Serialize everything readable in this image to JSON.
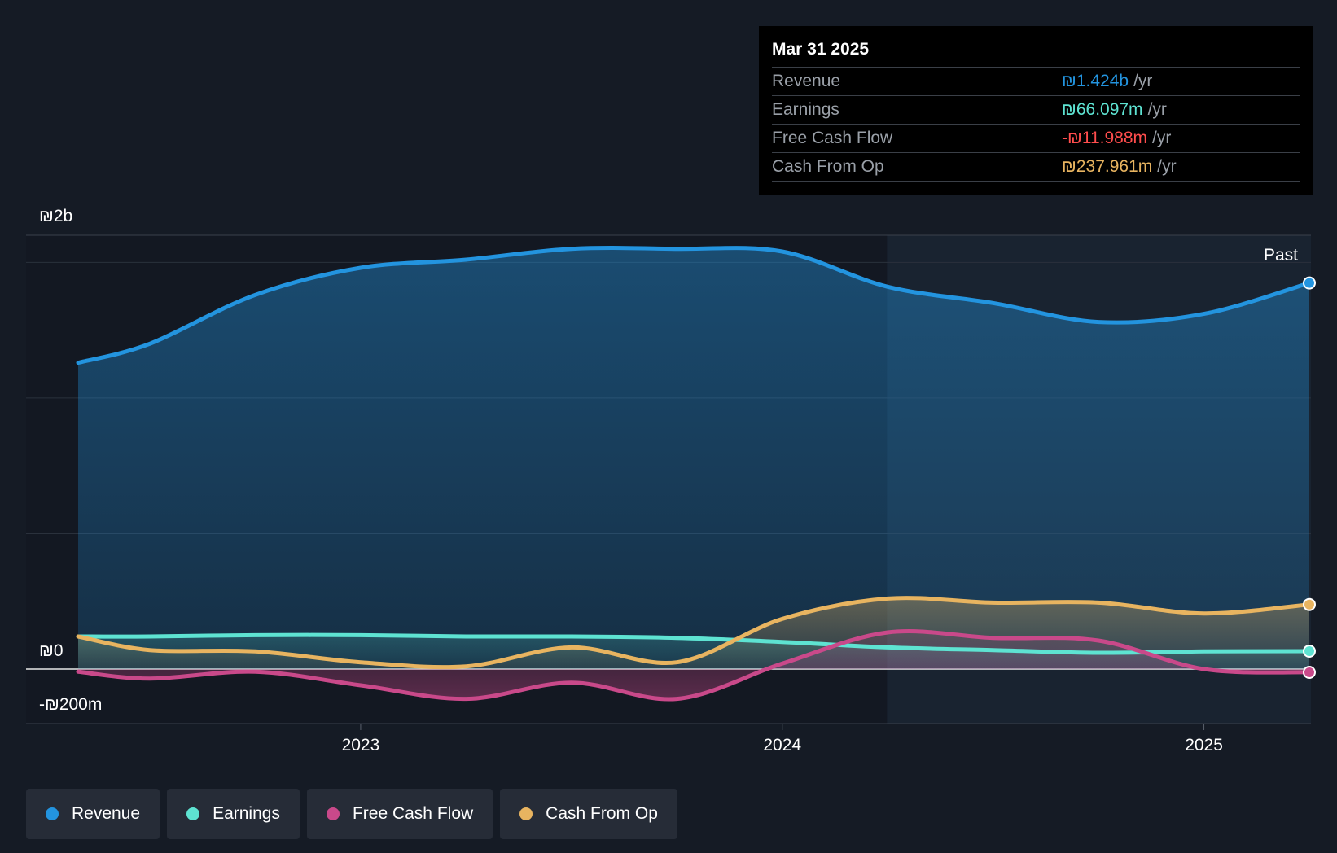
{
  "colors": {
    "background": "#151b25",
    "revenue": "#2394df",
    "earnings": "#5ee3d2",
    "free_cash_flow": "#c9498a",
    "cash_from_op": "#e8b460",
    "negative": "#ff4d4d"
  },
  "tooltip": {
    "date": "Mar 31 2025",
    "rows": [
      {
        "name": "Revenue",
        "value": "₪1.424b",
        "unit": "/yr",
        "color": "#2394df"
      },
      {
        "name": "Earnings",
        "value": "₪66.097m",
        "unit": "/yr",
        "color": "#5ee3d2"
      },
      {
        "name": "Free Cash Flow",
        "value": "-₪11.988m",
        "unit": "/yr",
        "color": "#ff4d4d"
      },
      {
        "name": "Cash From Op",
        "value": "₪237.961m",
        "unit": "/yr",
        "color": "#e8b460"
      }
    ]
  },
  "legend": [
    {
      "label": "Revenue",
      "color": "#2394df"
    },
    {
      "label": "Earnings",
      "color": "#5ee3d2"
    },
    {
      "label": "Free Cash Flow",
      "color": "#c9498a"
    },
    {
      "label": "Cash From Op",
      "color": "#e8b460"
    }
  ],
  "chart_data": {
    "type": "area",
    "title": "",
    "xlabel": "",
    "ylabel": "",
    "currency": "₪",
    "ylim": [
      -200,
      1600
    ],
    "x_range": [
      2022.33,
      2025.25
    ],
    "past_start": 2024.25,
    "past_label": "Past",
    "y_tick_labels": [
      {
        "value": 1600,
        "label": "₪2b"
      },
      {
        "value": 0,
        "label": "₪0"
      },
      {
        "value": -200,
        "label": "-₪200m"
      }
    ],
    "gridlines": [
      1500,
      1000,
      500
    ],
    "x_ticks": [
      {
        "value": 2023.0,
        "label": "2023"
      },
      {
        "value": 2024.0,
        "label": "2024"
      },
      {
        "value": 2025.0,
        "label": "2025"
      }
    ],
    "x": [
      2022.33,
      2022.5,
      2022.75,
      2023.0,
      2023.25,
      2023.5,
      2023.75,
      2024.0,
      2024.25,
      2024.5,
      2024.75,
      2025.0,
      2025.25
    ],
    "series": [
      {
        "name": "Revenue",
        "key": "revenue",
        "values": [
          1130,
          1200,
          1380,
          1480,
          1510,
          1550,
          1550,
          1540,
          1410,
          1350,
          1280,
          1310,
          1424
        ]
      },
      {
        "name": "Earnings",
        "key": "earnings",
        "values": [
          120,
          120,
          125,
          125,
          120,
          120,
          115,
          100,
          80,
          70,
          60,
          65,
          66
        ]
      },
      {
        "name": "Free Cash Flow",
        "key": "free_cash_flow",
        "values": [
          -10,
          -35,
          -10,
          -60,
          -110,
          -50,
          -110,
          20,
          135,
          115,
          105,
          0,
          -12
        ]
      },
      {
        "name": "Cash From Op",
        "key": "cash_from_op",
        "values": [
          120,
          70,
          65,
          25,
          10,
          80,
          25,
          185,
          260,
          245,
          245,
          205,
          238
        ]
      }
    ]
  }
}
